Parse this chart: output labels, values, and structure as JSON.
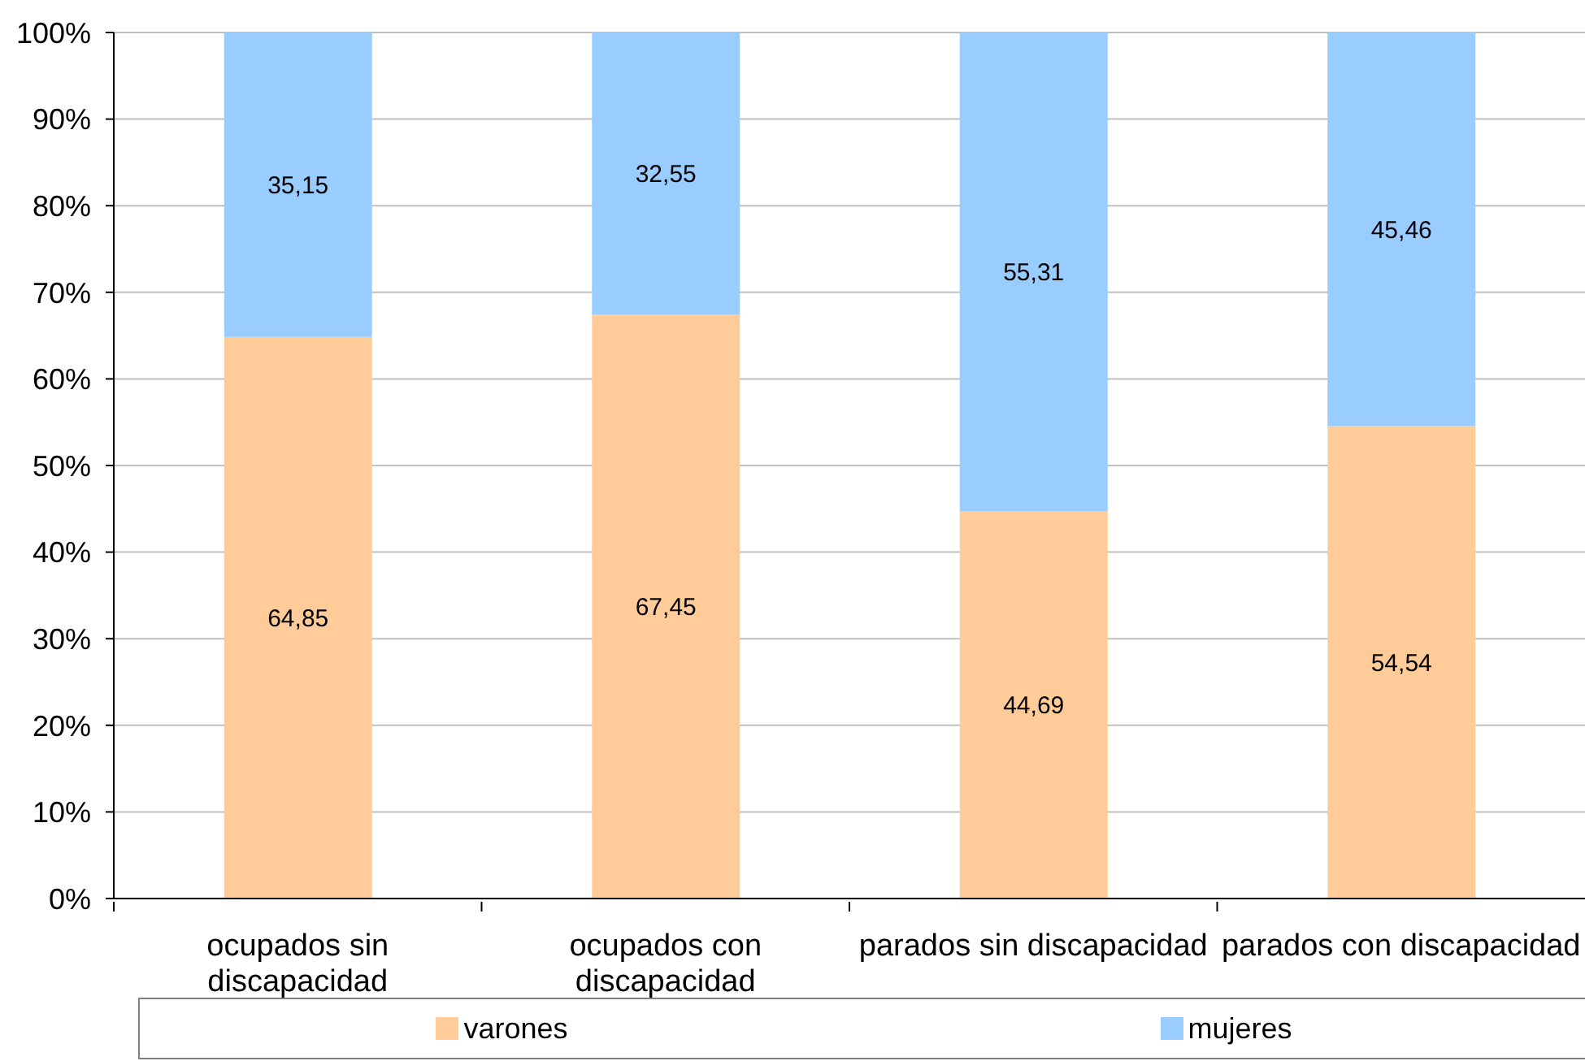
{
  "chart_data": {
    "type": "bar",
    "stacked": true,
    "categories": [
      "ocupados sin discapacidad",
      "ocupados con discapacidad",
      "parados sin discapacidad",
      "parados con discapacidad"
    ],
    "series": [
      {
        "name": "varones",
        "color": "#ffcc99",
        "values": [
          64.85,
          67.45,
          44.69,
          54.54
        ],
        "value_labels": [
          "64,85",
          "67,45",
          "44,69",
          "54,54"
        ]
      },
      {
        "name": "mujeres",
        "color": "#99ccff",
        "values": [
          35.15,
          32.55,
          55.31,
          45.46
        ],
        "value_labels": [
          "35,15",
          "32,55",
          "55,31",
          "45,46"
        ]
      }
    ],
    "ylim": [
      0,
      100
    ],
    "yticks": [
      {
        "value": 0,
        "label": "0%"
      },
      {
        "value": 10,
        "label": "10%"
      },
      {
        "value": 20,
        "label": "20%"
      },
      {
        "value": 30,
        "label": "30%"
      },
      {
        "value": 40,
        "label": "40%"
      },
      {
        "value": 50,
        "label": "50%"
      },
      {
        "value": 60,
        "label": "60%"
      },
      {
        "value": 70,
        "label": "70%"
      },
      {
        "value": 80,
        "label": "80%"
      },
      {
        "value": 90,
        "label": "90%"
      },
      {
        "value": 100,
        "label": "100%"
      }
    ],
    "grid": "y",
    "legend": "bottom"
  }
}
